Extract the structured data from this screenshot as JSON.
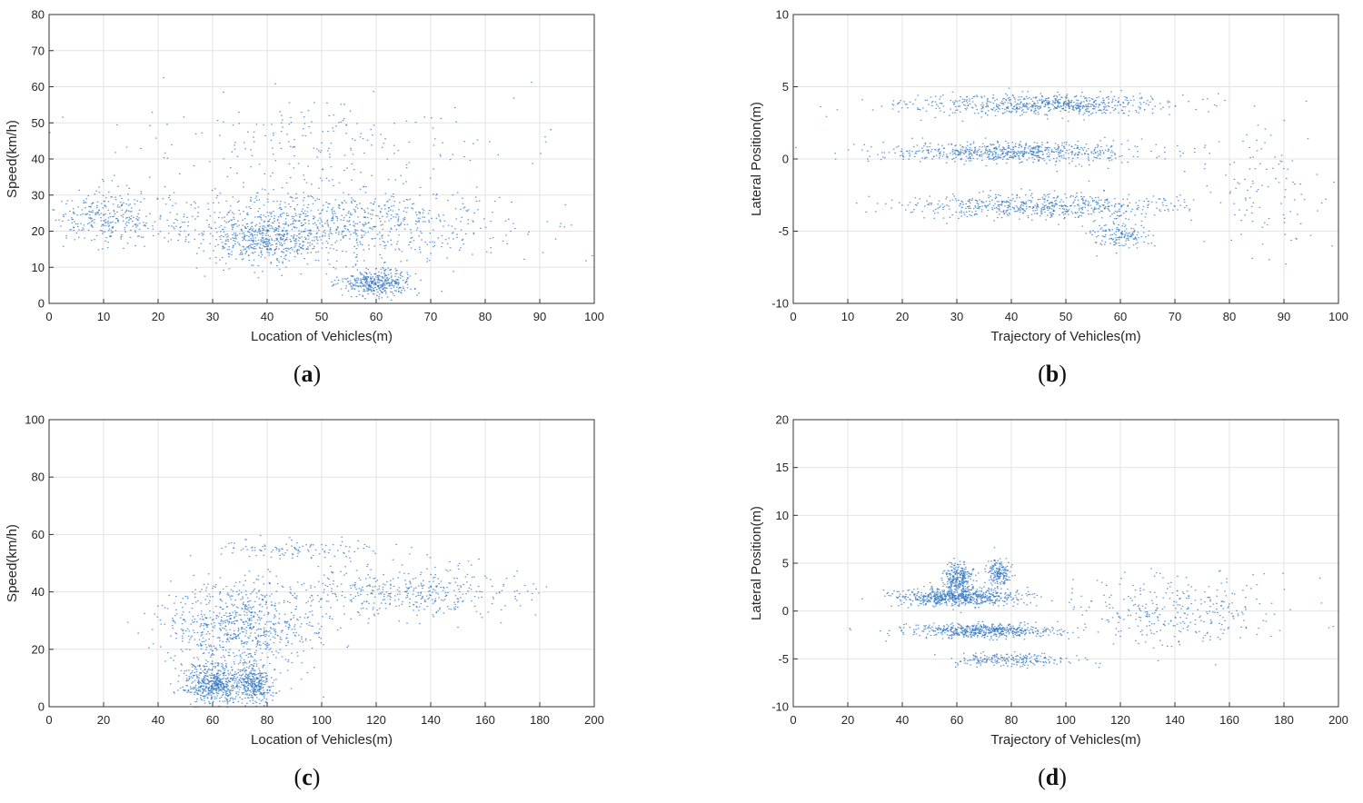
{
  "figure": {
    "point_color": "#2f74c0"
  },
  "chart_data": [
    {
      "id": "a",
      "type": "scatter",
      "caption_letter": "a",
      "title": "",
      "xlabel": "Location of Vehicles(m)",
      "ylabel": "Speed(km/h)",
      "xlim": [
        0,
        100
      ],
      "ylim": [
        0,
        80
      ],
      "xticks": [
        0,
        10,
        20,
        30,
        40,
        50,
        60,
        70,
        80,
        90,
        100
      ],
      "yticks": [
        0,
        10,
        20,
        30,
        40,
        50,
        60,
        70,
        80
      ],
      "grid": true,
      "density_clusters": [
        {
          "x": 50,
          "y": 22,
          "sx": 30,
          "sy": 8,
          "weight": 0.45
        },
        {
          "x": 60,
          "y": 6,
          "sx": 6,
          "sy": 3,
          "weight": 0.18
        },
        {
          "x": 40,
          "y": 17,
          "sx": 8,
          "sy": 5,
          "weight": 0.15
        },
        {
          "x": 10,
          "y": 24,
          "sx": 8,
          "sy": 6,
          "weight": 0.12
        },
        {
          "x": 50,
          "y": 45,
          "sx": 30,
          "sy": 12,
          "weight": 0.1
        }
      ]
    },
    {
      "id": "b",
      "type": "scatter",
      "caption_letter": "b",
      "title": "",
      "xlabel": "Trajectory of Vehicles(m)",
      "ylabel": "Lateral Position(m)",
      "xlim": [
        0,
        100
      ],
      "ylim": [
        -10,
        10
      ],
      "xticks": [
        0,
        10,
        20,
        30,
        40,
        50,
        60,
        70,
        80,
        90,
        100
      ],
      "yticks": [
        -10,
        -5,
        0,
        5,
        10
      ],
      "grid": true,
      "density_clusters": [
        {
          "x": 45,
          "y": 3.8,
          "sx": 22,
          "sy": 0.6,
          "weight": 0.3
        },
        {
          "x": 40,
          "y": 0.5,
          "sx": 22,
          "sy": 0.6,
          "weight": 0.3
        },
        {
          "x": 45,
          "y": -3.2,
          "sx": 22,
          "sy": 0.7,
          "weight": 0.28
        },
        {
          "x": 60,
          "y": -5.3,
          "sx": 5,
          "sy": 0.8,
          "weight": 0.07
        },
        {
          "x": 85,
          "y": -2,
          "sx": 10,
          "sy": 4,
          "weight": 0.05
        }
      ]
    },
    {
      "id": "c",
      "type": "scatter",
      "caption_letter": "c",
      "title": "",
      "xlabel": "Location of Vehicles(m)",
      "ylabel": "Speed(km/h)",
      "xlim": [
        0,
        200
      ],
      "ylim": [
        0,
        100
      ],
      "xticks": [
        0,
        20,
        40,
        60,
        80,
        100,
        120,
        140,
        160,
        180,
        200
      ],
      "yticks": [
        0,
        20,
        40,
        60,
        80,
        100
      ],
      "grid": true,
      "density_clusters": [
        {
          "x": 60,
          "y": 8,
          "sx": 10,
          "sy": 6,
          "weight": 0.25
        },
        {
          "x": 75,
          "y": 8,
          "sx": 6,
          "sy": 6,
          "weight": 0.15
        },
        {
          "x": 70,
          "y": 28,
          "sx": 25,
          "sy": 13,
          "weight": 0.35
        },
        {
          "x": 130,
          "y": 40,
          "sx": 40,
          "sy": 8,
          "weight": 0.2
        },
        {
          "x": 90,
          "y": 55,
          "sx": 30,
          "sy": 3,
          "weight": 0.05
        }
      ]
    },
    {
      "id": "d",
      "type": "scatter",
      "caption_letter": "d",
      "title": "",
      "xlabel": "Trajectory of Vehicles(m)",
      "ylabel": "Lateral Position(m)",
      "xlim": [
        0,
        200
      ],
      "ylim": [
        -10,
        20
      ],
      "xticks": [
        0,
        20,
        40,
        60,
        80,
        100,
        120,
        140,
        160,
        180,
        200
      ],
      "yticks": [
        -10,
        -5,
        0,
        5,
        10,
        15,
        20
      ],
      "grid": true,
      "density_clusters": [
        {
          "x": 60,
          "y": 1.5,
          "sx": 20,
          "sy": 0.8,
          "weight": 0.3
        },
        {
          "x": 60,
          "y": 3.5,
          "sx": 5,
          "sy": 1.3,
          "weight": 0.12
        },
        {
          "x": 75,
          "y": 4,
          "sx": 4,
          "sy": 1.2,
          "weight": 0.08
        },
        {
          "x": 70,
          "y": -2,
          "sx": 25,
          "sy": 0.6,
          "weight": 0.25
        },
        {
          "x": 80,
          "y": -5,
          "sx": 20,
          "sy": 0.6,
          "weight": 0.1
        },
        {
          "x": 140,
          "y": 0,
          "sx": 35,
          "sy": 3,
          "weight": 0.15
        }
      ]
    }
  ]
}
